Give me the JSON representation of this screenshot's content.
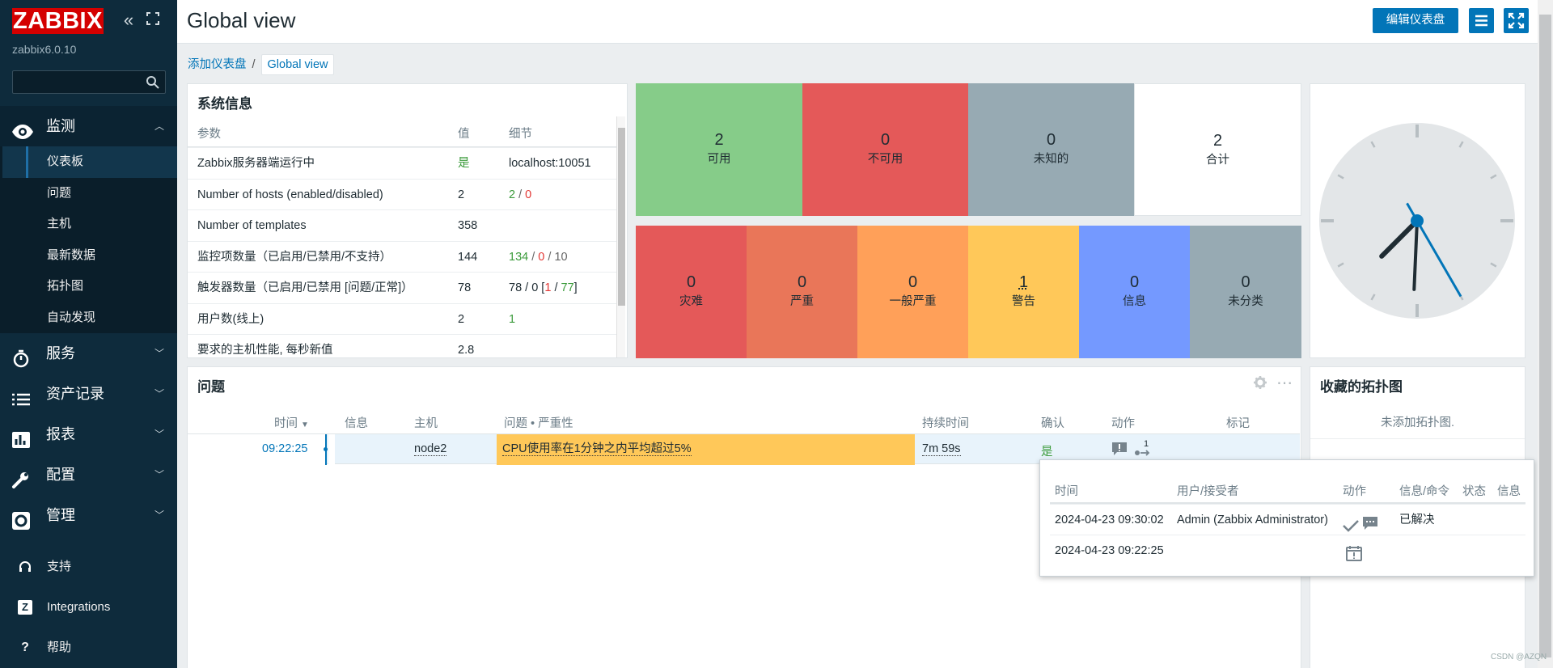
{
  "sidebar": {
    "logo": "ZABBIX",
    "version": "zabbix6.0.10",
    "search_placeholder": "",
    "menu": [
      {
        "label": "监测",
        "icon": "eye-icon",
        "open": true,
        "items": [
          "仪表板",
          "问题",
          "主机",
          "最新数据",
          "拓扑图",
          "自动发现"
        ]
      },
      {
        "label": "服务",
        "icon": "stopwatch-icon"
      },
      {
        "label": "资产记录",
        "icon": "list-icon"
      },
      {
        "label": "报表",
        "icon": "bar-chart-icon"
      },
      {
        "label": "配置",
        "icon": "wrench-icon"
      },
      {
        "label": "管理",
        "icon": "gear-icon"
      }
    ],
    "bottom": [
      {
        "label": "支持",
        "icon": "headset-icon"
      },
      {
        "label": "Integrations",
        "icon": "zabbix-z-icon"
      },
      {
        "label": "帮助",
        "icon": "question-icon"
      }
    ]
  },
  "header": {
    "title": "Global view",
    "edit_button": "编辑仪表盘",
    "menu_icon": "hamburger-icon",
    "fullscreen_icon": "fullscreen-icon"
  },
  "breadcrumb": {
    "parent": "添加仪表盘",
    "separator": "/",
    "current": "Global view"
  },
  "sysinfo": {
    "title": "系统信息",
    "headers": {
      "param": "参数",
      "value": "值",
      "detail": "细节"
    },
    "rows": [
      {
        "param": "Zabbix服务器端运行中",
        "value": "是",
        "detail": "localhost:10051"
      },
      {
        "param": "Number of hosts (enabled/disabled)",
        "value": "2",
        "d1": "2",
        "s1": " / ",
        "d2": "0"
      },
      {
        "param": "Number of templates",
        "value": "358",
        "detail": ""
      },
      {
        "param": "监控项数量（已启用/已禁用/不支持）",
        "value": "144",
        "d1": "134",
        "s1": " / ",
        "d2": "0",
        "s2": " / ",
        "d3": "10"
      },
      {
        "param": "触发器数量（已启用/已禁用 [问题/正常]）",
        "value": "78",
        "t0": "78 / 0 [",
        "t1": "1",
        "t2": " / ",
        "t3": "77",
        "t4": "]"
      },
      {
        "param": "用户数(线上)",
        "value": "2",
        "detail": "1"
      },
      {
        "param": "要求的主机性能, 每秒新值",
        "value": "2.8",
        "detail": ""
      }
    ]
  },
  "host_availability": [
    {
      "count": "2",
      "label": "可用",
      "color": "#86cc89"
    },
    {
      "count": "0",
      "label": "不可用",
      "color": "#e45959"
    },
    {
      "count": "0",
      "label": "未知的",
      "color": "#97aab3"
    },
    {
      "count": "2",
      "label": "合计",
      "color": "#ffffff"
    }
  ],
  "problem_severity": [
    {
      "count": "0",
      "label": "灾难",
      "color": "#e45959"
    },
    {
      "count": "0",
      "label": "严重",
      "color": "#e97659"
    },
    {
      "count": "0",
      "label": "一般严重",
      "color": "#ffa059"
    },
    {
      "count": "1",
      "label": "警告",
      "color": "#ffc859"
    },
    {
      "count": "0",
      "label": "信息",
      "color": "#7499ff"
    },
    {
      "count": "0",
      "label": "未分类",
      "color": "#97aab3"
    }
  ],
  "problems": {
    "title": "问题",
    "headers": [
      "时间",
      "信息",
      "主机",
      "问题 • 严重性",
      "持续时间",
      "确认",
      "动作",
      "标记"
    ],
    "rows": [
      {
        "time": "09:22:25",
        "host": "node2",
        "problem": "CPU使用率在1分钟之内平均超过5%",
        "duration": "7m 59s",
        "ack": "是",
        "actions_count": "1"
      }
    ]
  },
  "favorite_maps": {
    "title": "收藏的拓扑图",
    "empty": "未添加拓扑图."
  },
  "popup": {
    "headers": [
      "时间",
      "用户/接受者",
      "动作",
      "信息/命令",
      "状态",
      "信息"
    ],
    "rows": [
      {
        "time": "2024-04-23 09:30:02",
        "user": "Admin (Zabbix Administrator)",
        "message": "已解决"
      },
      {
        "time": "2024-04-23 09:22:25",
        "user": "",
        "message": ""
      }
    ]
  },
  "clock": {
    "hour": 7,
    "minute": 30,
    "second": 25
  },
  "footer": "CSDN @AZQN",
  "colors": {
    "accent": "#0275b8",
    "sidebar": "#0e2b3c",
    "logo": "#d40000",
    "warning": "#ffc859"
  }
}
